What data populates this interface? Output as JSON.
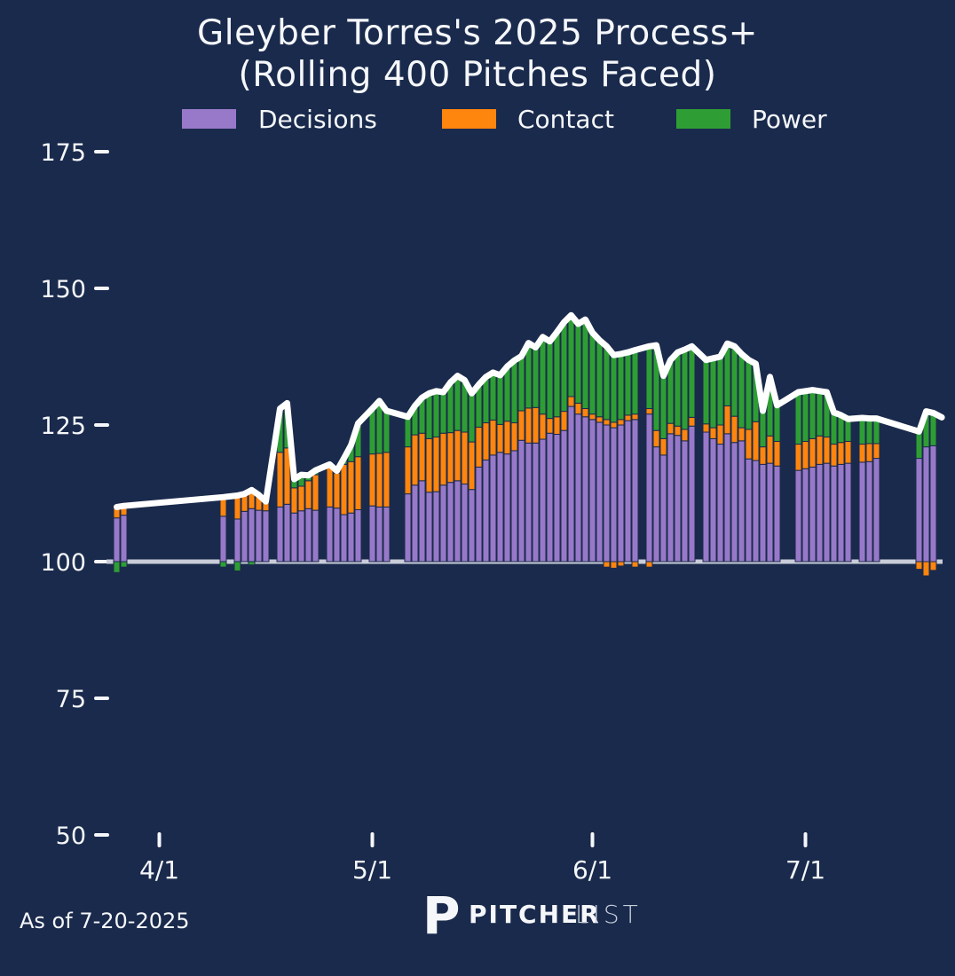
{
  "title": {
    "line1": "Gleyber Torres's 2025 Process+",
    "line2": "(Rolling 400 Pitches Faced)"
  },
  "legend": [
    {
      "label": "Decisions",
      "color": "#9879C9"
    },
    {
      "label": "Contact",
      "color": "#FE850E"
    },
    {
      "label": "Power",
      "color": "#2E9E34"
    }
  ],
  "footer": {
    "as_of": "As of 7-20-2025",
    "brand_glyph": "P",
    "brand_bold": "PITCHER",
    "brand_light": "LIST"
  },
  "colors": {
    "background": "#1A2A4C",
    "decisions": "#9879C9",
    "contact": "#FE850E",
    "power": "#2E9E34",
    "line": "#FFFFFF",
    "baseline": "#C9CDD9",
    "text": "#F5F7FA"
  },
  "chart_data": {
    "type": "bar",
    "subtype": "stacked-bar-with-total-line",
    "title": "Gleyber Torres's 2025 Process+ (Rolling 400 Pitches Faced)",
    "series_names": [
      "Decisions",
      "Contact",
      "Power"
    ],
    "baseline_value": 100,
    "ylim": [
      45,
      180
    ],
    "y_ticks": [
      50,
      75,
      100,
      125,
      150,
      175
    ],
    "x_ticks": [
      {
        "label": "4/1",
        "day": 6
      },
      {
        "label": "5/1",
        "day": 36
      },
      {
        "label": "6/1",
        "day": 67
      },
      {
        "label": "7/1",
        "day": 97
      }
    ],
    "day0_date": "3/26",
    "bar_fields": [
      "day",
      "decisions_top",
      "contact_top",
      "total",
      "below_value",
      "below_series"
    ],
    "bars": [
      [
        0,
        108.0,
        110.0,
        110.0,
        98.0,
        "power"
      ],
      [
        1,
        108.5,
        110.2,
        110.2,
        99.0,
        "power"
      ],
      [
        15,
        108.3,
        111.8,
        111.8,
        99.0,
        "power"
      ],
      [
        17,
        107.8,
        112.1,
        112.1,
        98.3,
        "power"
      ],
      [
        18,
        109.2,
        112.4,
        112.4,
        0,
        ""
      ],
      [
        19,
        109.7,
        112.8,
        113.1,
        99.4,
        "power"
      ],
      [
        20,
        109.4,
        112.2,
        112.2,
        0,
        ""
      ],
      [
        21,
        109.3,
        111.0,
        111.0,
        0,
        ""
      ],
      [
        23,
        110.0,
        120.0,
        128.0,
        0,
        ""
      ],
      [
        24,
        110.5,
        120.8,
        129.0,
        0,
        ""
      ],
      [
        25,
        108.9,
        113.5,
        115.1,
        0,
        ""
      ],
      [
        26,
        109.3,
        113.8,
        115.9,
        0,
        ""
      ],
      [
        27,
        109.7,
        114.8,
        115.8,
        0,
        ""
      ],
      [
        28,
        109.4,
        115.9,
        116.7,
        0,
        ""
      ],
      [
        30,
        110.0,
        117.3,
        117.8,
        0,
        ""
      ],
      [
        31,
        109.8,
        116.2,
        116.6,
        0,
        ""
      ],
      [
        32,
        108.6,
        117.8,
        118.9,
        0,
        ""
      ],
      [
        33,
        108.9,
        118.3,
        121.3,
        0,
        ""
      ],
      [
        34,
        109.5,
        119.2,
        125.3,
        0,
        ""
      ],
      [
        36,
        110.2,
        119.7,
        128.0,
        0,
        ""
      ],
      [
        37,
        110.0,
        119.8,
        129.4,
        0,
        ""
      ],
      [
        38,
        110.0,
        120.0,
        127.6,
        0,
        ""
      ],
      [
        41,
        112.4,
        121.0,
        126.5,
        0,
        ""
      ],
      [
        42,
        114.0,
        123.2,
        128.5,
        0,
        ""
      ],
      [
        43,
        114.8,
        123.5,
        130.0,
        0,
        ""
      ],
      [
        44,
        112.7,
        122.5,
        130.8,
        0,
        ""
      ],
      [
        45,
        112.8,
        122.8,
        131.2,
        0,
        ""
      ],
      [
        46,
        114.0,
        123.5,
        131.0,
        0,
        ""
      ],
      [
        47,
        114.5,
        123.6,
        132.8,
        0,
        ""
      ],
      [
        48,
        114.8,
        124.0,
        134.0,
        0,
        ""
      ],
      [
        49,
        114.2,
        123.7,
        133.2,
        0,
        ""
      ],
      [
        50,
        113.2,
        121.9,
        130.8,
        0,
        ""
      ],
      [
        51,
        117.3,
        124.6,
        132.4,
        0,
        ""
      ],
      [
        52,
        118.6,
        125.4,
        133.8,
        0,
        ""
      ],
      [
        53,
        119.5,
        125.9,
        134.6,
        0,
        ""
      ],
      [
        54,
        120.0,
        125.1,
        134.1,
        0,
        ""
      ],
      [
        55,
        119.7,
        125.7,
        135.7,
        0,
        ""
      ],
      [
        56,
        120.3,
        125.4,
        136.8,
        0,
        ""
      ],
      [
        57,
        122.2,
        127.6,
        137.6,
        0,
        ""
      ],
      [
        58,
        121.7,
        128.1,
        140.0,
        0,
        ""
      ],
      [
        59,
        121.7,
        128.2,
        139.2,
        0,
        ""
      ],
      [
        60,
        122.4,
        127.0,
        141.1,
        0,
        ""
      ],
      [
        61,
        123.5,
        126.2,
        140.3,
        0,
        ""
      ],
      [
        62,
        123.3,
        126.5,
        142.0,
        0,
        ""
      ],
      [
        63,
        124.0,
        127.5,
        143.8,
        0,
        ""
      ],
      [
        64,
        128.4,
        130.2,
        145.1,
        0,
        ""
      ],
      [
        65,
        127.0,
        129.0,
        143.5,
        0,
        ""
      ],
      [
        66,
        126.5,
        128.0,
        144.3,
        0,
        ""
      ],
      [
        67,
        126.0,
        127.0,
        141.9,
        0,
        ""
      ],
      [
        68,
        125.5,
        126.5,
        140.5,
        0,
        ""
      ],
      [
        69,
        125.0,
        126.0,
        139.4,
        99.0,
        "contact"
      ],
      [
        70,
        124.5,
        125.5,
        137.8,
        98.8,
        "contact"
      ],
      [
        71,
        125.0,
        126.0,
        138.0,
        99.2,
        "contact"
      ],
      [
        72,
        125.8,
        126.8,
        138.3,
        0,
        ""
      ],
      [
        73,
        126.0,
        127.0,
        138.7,
        99.0,
        "contact"
      ],
      [
        75,
        127.0,
        128.0,
        139.4,
        99.0,
        "contact"
      ],
      [
        76,
        121.0,
        124.0,
        139.6,
        0,
        ""
      ],
      [
        77,
        119.5,
        122.5,
        134.0,
        0,
        ""
      ],
      [
        78,
        123.4,
        125.3,
        136.9,
        0,
        ""
      ],
      [
        79,
        123.1,
        124.8,
        138.3,
        0,
        ""
      ],
      [
        80,
        122.1,
        124.2,
        138.8,
        0,
        ""
      ],
      [
        81,
        124.8,
        126.4,
        139.4,
        0,
        ""
      ],
      [
        83,
        123.7,
        125.2,
        136.9,
        0,
        ""
      ],
      [
        84,
        122.5,
        124.5,
        137.2,
        0,
        ""
      ],
      [
        85,
        121.5,
        125.0,
        137.5,
        0,
        ""
      ],
      [
        86,
        123.4,
        128.5,
        139.9,
        0,
        ""
      ],
      [
        87,
        121.8,
        126.6,
        139.4,
        0,
        ""
      ],
      [
        88,
        122.1,
        124.5,
        138.0,
        0,
        ""
      ],
      [
        89,
        118.8,
        124.2,
        136.9,
        0,
        ""
      ],
      [
        90,
        118.5,
        125.6,
        136.2,
        0,
        ""
      ],
      [
        91,
        117.8,
        121.0,
        127.6,
        0,
        ""
      ],
      [
        92,
        118.0,
        123.0,
        133.8,
        0,
        ""
      ],
      [
        93,
        117.5,
        122.0,
        128.6,
        0,
        ""
      ],
      [
        96,
        116.7,
        121.5,
        131.0,
        0,
        ""
      ],
      [
        97,
        117.0,
        122.0,
        131.2,
        0,
        ""
      ],
      [
        98,
        117.3,
        122.5,
        131.4,
        0,
        ""
      ],
      [
        99,
        117.8,
        123.0,
        131.2,
        0,
        ""
      ],
      [
        100,
        118.0,
        122.8,
        131.0,
        0,
        ""
      ],
      [
        101,
        117.5,
        121.5,
        127.3,
        0,
        ""
      ],
      [
        102,
        117.8,
        121.8,
        126.8,
        0,
        ""
      ],
      [
        103,
        118.0,
        122.0,
        126.1,
        0,
        ""
      ],
      [
        105,
        118.2,
        121.5,
        126.3,
        0,
        ""
      ],
      [
        106,
        118.3,
        121.6,
        126.2,
        0,
        ""
      ],
      [
        107,
        118.9,
        121.6,
        126.2,
        0,
        ""
      ],
      [
        113,
        118.9,
        118.9,
        123.8,
        98.6,
        "contact"
      ],
      [
        114,
        121.0,
        121.0,
        127.5,
        97.4,
        "contact"
      ],
      [
        115,
        121.2,
        121.2,
        127.2,
        98.4,
        "contact"
      ]
    ],
    "line_end_point": {
      "day": 116.2,
      "value": 126.4
    },
    "grid": false,
    "legend_position": "top"
  }
}
